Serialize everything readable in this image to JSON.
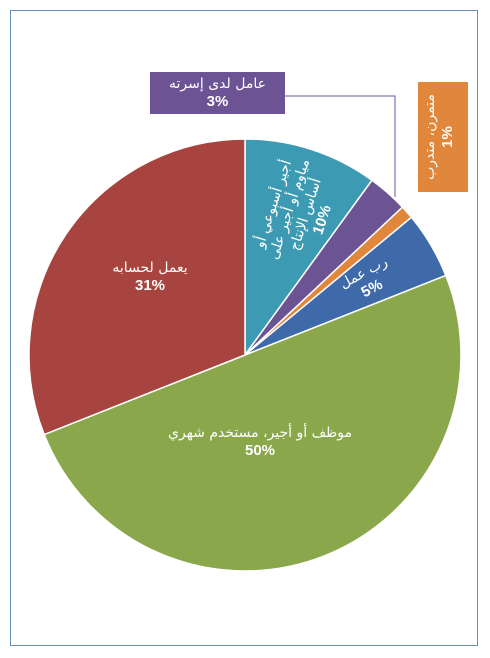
{
  "chart_data": {
    "type": "pie",
    "categories": [
      "أجير أسبوعي أو مياوم أو أجير على أساس الإنتاج",
      "عامل لدى إسرته",
      "متمرن، متدرب",
      "رب عمل",
      "موظف أو أجير، مستخدم شهري",
      "يعمل لحسابه"
    ],
    "values": [
      10,
      3,
      1,
      5,
      50,
      31
    ],
    "value_labels": [
      "10%",
      "3%",
      "1%",
      "5%",
      "50%",
      "31%"
    ],
    "colors": [
      "#3d9ab3",
      "#6c5394",
      "#e0873b",
      "#3f6aaa",
      "#8aa84b",
      "#a8443f"
    ]
  }
}
